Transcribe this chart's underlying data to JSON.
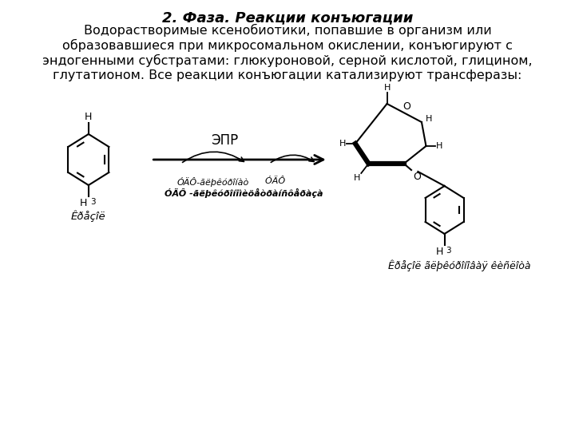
{
  "title_line1": "2. Фаза. Реакции конъюгации",
  "body_text": "Водорастворимые ксенобиотики, попавшие в организм или\nобразовавшиеся при микросомальном окислении, конъюгируют с\nэндогенными субстратами: глюкуроновой, серной кислотой, глицином,\nглутатионом. Все реакции конъюгации катализируют трансферазы:",
  "epr_label": "ЭПР",
  "label_left": "Êðåçîë",
  "label_right": "Êðåçîë ãëþêóðîíîâàÿ êèñëîòà",
  "label_udp1": "ÓÄÔ-ãëþêóðîíàò",
  "label_udp2_normal": "    ÓÄÔ",
  "label_udp2_bold": "ÓÄÔ -ãëþêóðîíîìèöåòðàíñôåðàçà",
  "bg_color": "#ffffff",
  "text_color": "#000000",
  "line_color": "#000000"
}
